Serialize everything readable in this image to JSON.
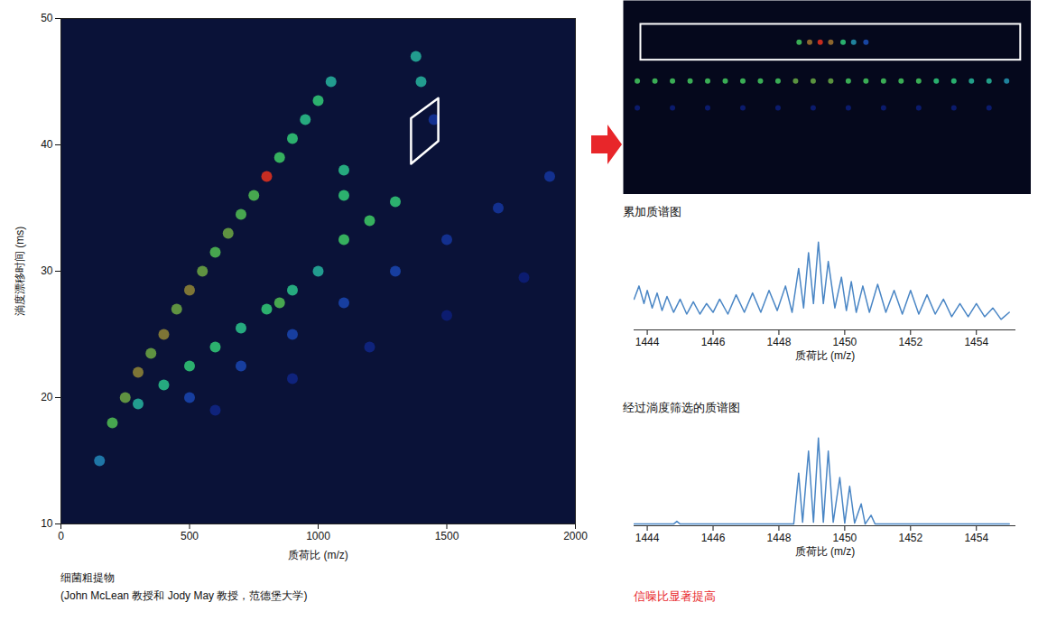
{
  "chart_data": [
    {
      "type": "heatmap",
      "x_label": "质荷比 (m/z)",
      "y_label": "淌度漂移时间 (ms)",
      "xlim": [
        0,
        2000
      ],
      "xticks": [
        0,
        500,
        1000,
        1500,
        2000
      ],
      "ylim": [
        10,
        50
      ],
      "yticks": [
        10,
        20,
        30,
        40,
        50
      ],
      "annotations": [
        "细菌粗提物",
        "(John McLean 教授和 Jody May 教授，范德堡大学)"
      ],
      "cells": [
        [
          150,
          15,
          0.5
        ],
        [
          200,
          18,
          0.8
        ],
        [
          250,
          20,
          0.85
        ],
        [
          300,
          22,
          0.9
        ],
        [
          350,
          23.5,
          0.85
        ],
        [
          400,
          25,
          0.9
        ],
        [
          450,
          27,
          0.85
        ],
        [
          500,
          28.5,
          0.9
        ],
        [
          550,
          30,
          0.85
        ],
        [
          600,
          31.5,
          0.8
        ],
        [
          650,
          33,
          0.85
        ],
        [
          700,
          34.5,
          0.8
        ],
        [
          750,
          36,
          0.8
        ],
        [
          800,
          37.5,
          1.0
        ],
        [
          850,
          39,
          0.75
        ],
        [
          900,
          40.5,
          0.7
        ],
        [
          950,
          42,
          0.65
        ],
        [
          1000,
          43.5,
          0.7
        ],
        [
          1050,
          45,
          0.6
        ],
        [
          300,
          19.5,
          0.6
        ],
        [
          400,
          21,
          0.65
        ],
        [
          500,
          22.5,
          0.7
        ],
        [
          600,
          24,
          0.7
        ],
        [
          700,
          25.5,
          0.65
        ],
        [
          800,
          27,
          0.7
        ],
        [
          900,
          28.5,
          0.65
        ],
        [
          1000,
          30,
          0.6
        ],
        [
          1100,
          32.5,
          0.75
        ],
        [
          1200,
          34,
          0.75
        ],
        [
          1300,
          35.5,
          0.7
        ],
        [
          500,
          20,
          0.35
        ],
        [
          700,
          22.5,
          0.35
        ],
        [
          900,
          25,
          0.35
        ],
        [
          1100,
          27.5,
          0.35
        ],
        [
          1300,
          30,
          0.35
        ],
        [
          1500,
          32.5,
          0.3
        ],
        [
          1700,
          35,
          0.3
        ],
        [
          1900,
          37.5,
          0.3
        ],
        [
          600,
          19,
          0.25
        ],
        [
          900,
          21.5,
          0.25
        ],
        [
          1200,
          24,
          0.25
        ],
        [
          1500,
          26.5,
          0.22
        ],
        [
          1800,
          29.5,
          0.22
        ],
        [
          850,
          27.5,
          0.8
        ],
        [
          1100,
          36,
          0.7
        ],
        [
          1100,
          38,
          0.65
        ],
        [
          1400,
          45,
          0.6
        ],
        [
          1380,
          47,
          0.6
        ],
        [
          1450,
          42,
          0.3
        ]
      ],
      "selection": [
        [
          1361,
          38.5
        ],
        [
          1361,
          42.1
        ],
        [
          1467,
          43.7
        ],
        [
          1467,
          40.3
        ]
      ]
    },
    {
      "type": "heatmap",
      "tick_labels": false,
      "xlim": [
        1443.6,
        1455.2
      ],
      "ylim": [
        38,
        44.5
      ],
      "cells": [
        [
          1444.0,
          41.8,
          0.7
        ],
        [
          1444.5,
          41.8,
          0.7
        ],
        [
          1445.0,
          41.8,
          0.7
        ],
        [
          1445.5,
          41.8,
          0.7
        ],
        [
          1446.0,
          41.8,
          0.7
        ],
        [
          1446.5,
          41.8,
          0.7
        ],
        [
          1447.0,
          41.8,
          0.7
        ],
        [
          1447.5,
          41.8,
          0.7
        ],
        [
          1448.0,
          41.8,
          0.7
        ],
        [
          1448.5,
          41.8,
          0.75
        ],
        [
          1449.0,
          41.8,
          0.75
        ],
        [
          1449.5,
          41.8,
          0.75
        ],
        [
          1450.0,
          41.8,
          0.7
        ],
        [
          1450.5,
          41.8,
          0.7
        ],
        [
          1451.0,
          41.8,
          0.7
        ],
        [
          1451.5,
          41.8,
          0.7
        ],
        [
          1452.0,
          41.8,
          0.7
        ],
        [
          1452.5,
          41.8,
          0.65
        ],
        [
          1453.0,
          41.8,
          0.65
        ],
        [
          1453.5,
          41.8,
          0.6
        ],
        [
          1454.0,
          41.8,
          0.6
        ],
        [
          1454.5,
          41.8,
          0.55
        ],
        [
          1448.6,
          43.1,
          0.7
        ],
        [
          1448.9,
          43.1,
          0.8
        ],
        [
          1449.2,
          43.1,
          0.85
        ],
        [
          1449.5,
          43.1,
          0.8
        ],
        [
          1449.85,
          43.1,
          0.65
        ],
        [
          1450.15,
          43.1,
          0.55
        ],
        [
          1450.5,
          43.1,
          0.45
        ],
        [
          1444.0,
          40.9,
          0.35
        ],
        [
          1445.0,
          40.9,
          0.35
        ],
        [
          1446.0,
          40.9,
          0.35
        ],
        [
          1447.0,
          40.9,
          0.35
        ],
        [
          1448.0,
          40.9,
          0.35
        ],
        [
          1449.0,
          40.9,
          0.35
        ],
        [
          1450.0,
          40.9,
          0.35
        ],
        [
          1451.0,
          40.9,
          0.35
        ],
        [
          1452.0,
          40.9,
          0.35
        ],
        [
          1453.0,
          40.9,
          0.35
        ],
        [
          1454.0,
          40.9,
          0.35
        ]
      ],
      "selection": {
        "x": [
          1444.1,
          1454.9
        ],
        "y": [
          42.5,
          43.7
        ]
      }
    },
    {
      "type": "line",
      "title": "累加质谱图",
      "x_label": "质荷比 (m/z)",
      "tick_labels": "x",
      "color": "#4a86c5",
      "xlim": [
        1443.6,
        1455.2
      ],
      "xticks": [
        1444,
        1446,
        1448,
        1450,
        1452,
        1454
      ],
      "ylim": [
        0,
        1.1
      ],
      "x": [
        1443.6,
        1443.75,
        1443.9,
        1444.0,
        1444.15,
        1444.3,
        1444.45,
        1444.6,
        1444.8,
        1445.0,
        1445.2,
        1445.4,
        1445.6,
        1445.8,
        1446.0,
        1446.2,
        1446.45,
        1446.7,
        1446.95,
        1447.2,
        1447.45,
        1447.7,
        1447.95,
        1448.2,
        1448.4,
        1448.6,
        1448.75,
        1448.9,
        1449.05,
        1449.2,
        1449.35,
        1449.5,
        1449.7,
        1449.9,
        1450.05,
        1450.2,
        1450.35,
        1450.55,
        1450.75,
        1451.0,
        1451.25,
        1451.5,
        1451.75,
        1452.0,
        1452.25,
        1452.5,
        1452.75,
        1453.0,
        1453.25,
        1453.5,
        1453.75,
        1454.0,
        1454.25,
        1454.5,
        1454.75,
        1455.0
      ],
      "values": [
        0.35,
        0.5,
        0.3,
        0.45,
        0.25,
        0.42,
        0.22,
        0.38,
        0.2,
        0.35,
        0.18,
        0.32,
        0.18,
        0.3,
        0.2,
        0.35,
        0.18,
        0.4,
        0.2,
        0.42,
        0.2,
        0.45,
        0.22,
        0.5,
        0.2,
        0.7,
        0.25,
        0.88,
        0.3,
        1.0,
        0.3,
        0.78,
        0.25,
        0.6,
        0.22,
        0.55,
        0.2,
        0.5,
        0.2,
        0.52,
        0.2,
        0.45,
        0.18,
        0.45,
        0.18,
        0.4,
        0.18,
        0.35,
        0.15,
        0.3,
        0.15,
        0.3,
        0.15,
        0.25,
        0.12,
        0.2
      ]
    },
    {
      "type": "line",
      "title": "经过淌度筛选的质谱图",
      "x_label": "质荷比 (m/z)",
      "tick_labels": "x",
      "color": "#4a86c5",
      "xlim": [
        1443.6,
        1455.2
      ],
      "xticks": [
        1444,
        1446,
        1448,
        1450,
        1452,
        1454
      ],
      "ylim": [
        0,
        1.1
      ],
      "annotations": [
        "信噪比显著提高"
      ],
      "x": [
        1443.6,
        1444.8,
        1444.9,
        1445.0,
        1448.45,
        1448.6,
        1448.72,
        1448.9,
        1449.05,
        1449.2,
        1449.35,
        1449.5,
        1449.65,
        1449.85,
        1450.0,
        1450.15,
        1450.3,
        1450.5,
        1450.62,
        1450.8,
        1450.92,
        1451.5,
        1455.0
      ],
      "values": [
        0.02,
        0.02,
        0.05,
        0.02,
        0.02,
        0.6,
        0.04,
        0.85,
        0.04,
        1.0,
        0.04,
        0.85,
        0.04,
        0.55,
        0.03,
        0.45,
        0.03,
        0.25,
        0.02,
        0.12,
        0.02,
        0.02,
        0.02
      ]
    }
  ]
}
